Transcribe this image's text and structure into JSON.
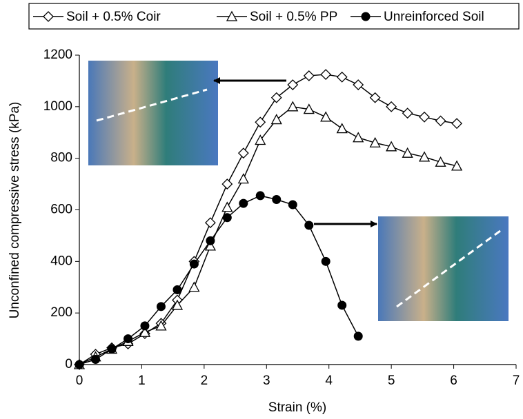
{
  "chart_data": {
    "type": "line",
    "x_label": "Strain (%)",
    "y_label": "Unconfined compressive stress (kPa)",
    "xlim": [
      0,
      7
    ],
    "xticks": [
      0,
      1,
      2,
      3,
      4,
      5,
      6,
      7
    ],
    "ylim": [
      0,
      1200
    ],
    "yticks": [
      0,
      200,
      400,
      600,
      800,
      1000,
      1200
    ],
    "grid": false,
    "legend": "top",
    "series": [
      {
        "name": "Soil + 0.5% Coir",
        "color": "#000000",
        "marker": "diamond",
        "x": [
          0,
          0.26,
          0.52,
          0.78,
          1.05,
          1.31,
          1.57,
          1.84,
          2.1,
          2.37,
          2.63,
          2.9,
          3.16,
          3.42,
          3.68,
          3.95,
          4.21,
          4.47,
          4.74,
          5.0,
          5.26,
          5.53,
          5.79,
          6.05
        ],
        "values": [
          0,
          40,
          65,
          80,
          120,
          160,
          250,
          400,
          550,
          700,
          820,
          940,
          1035,
          1085,
          1120,
          1125,
          1115,
          1085,
          1035,
          1000,
          975,
          960,
          945,
          935
        ]
      },
      {
        "name": "Soil + 0.5% PP",
        "color": "#000000",
        "marker": "triangle",
        "x": [
          0,
          0.26,
          0.52,
          0.78,
          1.05,
          1.31,
          1.57,
          1.84,
          2.1,
          2.37,
          2.63,
          2.9,
          3.16,
          3.42,
          3.68,
          3.95,
          4.21,
          4.47,
          4.74,
          5.0,
          5.26,
          5.53,
          5.79,
          6.05
        ],
        "values": [
          0,
          30,
          60,
          90,
          125,
          150,
          230,
          300,
          460,
          610,
          720,
          870,
          950,
          1000,
          990,
          960,
          915,
          880,
          860,
          845,
          820,
          805,
          785,
          770
        ]
      },
      {
        "name": "Unreinforced Soil",
        "color": "#000000",
        "marker": "circle",
        "x": [
          0,
          0.26,
          0.52,
          0.78,
          1.05,
          1.31,
          1.57,
          1.84,
          2.1,
          2.37,
          2.63,
          2.9,
          3.16,
          3.42,
          3.68,
          3.95,
          4.21,
          4.47
        ],
        "values": [
          0,
          20,
          60,
          100,
          150,
          225,
          290,
          390,
          480,
          570,
          625,
          655,
          640,
          620,
          540,
          400,
          230,
          110
        ]
      }
    ]
  }
}
